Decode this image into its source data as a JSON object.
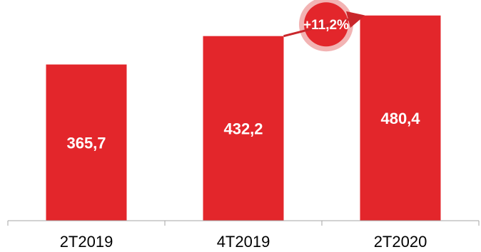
{
  "colors": {
    "bar": "#e3262b",
    "axis": "#a6a6a6",
    "badge_ring": "#f2b3b3",
    "badge_fill": "#e3262b",
    "arrow": "#c9262b"
  },
  "chart_data": {
    "type": "bar",
    "categories": [
      "2T2019",
      "4T2019",
      "2T2020"
    ],
    "values": [
      365.7,
      432.2,
      480.4
    ],
    "value_labels": [
      "365,7",
      "432,2",
      "480,4"
    ],
    "ylim": [
      0,
      500
    ],
    "grid": false,
    "annotation": {
      "text": "+11,2%",
      "from_category": "4T2019",
      "to_category": "2T2020",
      "shape": "circle-with-arrow"
    }
  }
}
